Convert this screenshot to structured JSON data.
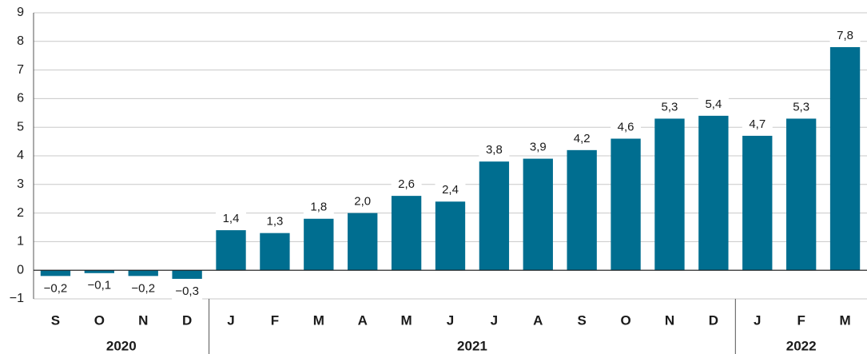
{
  "chart_data": {
    "type": "bar",
    "categories": [
      "S",
      "O",
      "N",
      "D",
      "J",
      "F",
      "M",
      "A",
      "M",
      "J",
      "J",
      "A",
      "S",
      "O",
      "N",
      "D",
      "J",
      "F",
      "M"
    ],
    "years": [
      "2020",
      "2020",
      "2020",
      "2020",
      "2021",
      "2021",
      "2021",
      "2021",
      "2021",
      "2021",
      "2021",
      "2021",
      "2021",
      "2021",
      "2021",
      "2021",
      "2022",
      "2022",
      "2022"
    ],
    "values": [
      -0.2,
      -0.1,
      -0.2,
      -0.3,
      1.4,
      1.3,
      1.8,
      2.0,
      2.6,
      2.4,
      3.8,
      3.9,
      4.2,
      4.6,
      5.3,
      5.4,
      4.7,
      5.3,
      7.8
    ],
    "value_labels": [
      "−0,2",
      "−0,1",
      "−0,2",
      "−0,3",
      "1,4",
      "1,3",
      "1,8",
      "2,0",
      "2,6",
      "2,4",
      "3,8",
      "3,9",
      "4,2",
      "4,6",
      "5,3",
      "5,4",
      "4,7",
      "5,3",
      "7,8"
    ],
    "color": "#006e90",
    "ylim": [
      -1,
      9
    ],
    "yticks": [
      {
        "value": -1,
        "label": "−1"
      },
      0,
      1,
      2,
      3,
      4,
      5,
      6,
      7,
      8,
      9
    ],
    "grid": true
  }
}
